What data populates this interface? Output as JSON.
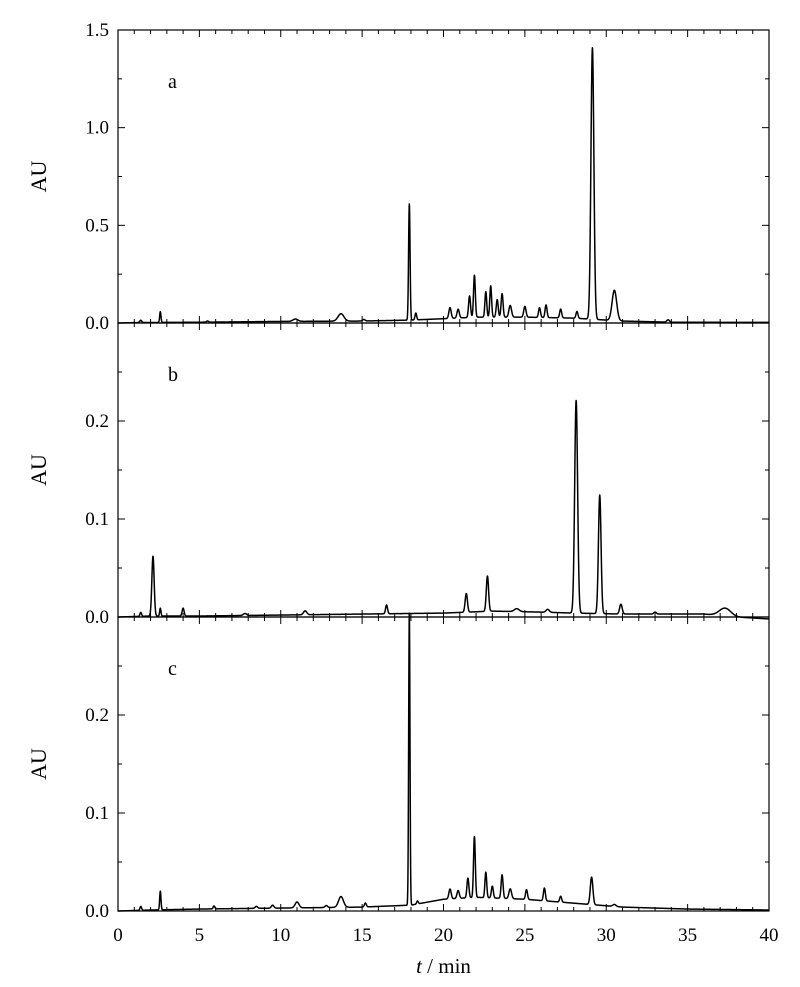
{
  "chart_data": [
    {
      "type": "line",
      "panel_label": "a",
      "ylabel": "AU",
      "ylim": [
        0,
        1.5
      ],
      "yticks": [
        "0.0",
        "0.5",
        "1.0",
        "1.5"
      ],
      "xlim": [
        0,
        40
      ],
      "baseline": [
        [
          0,
          0.0
        ],
        [
          1,
          0.002
        ],
        [
          5,
          0.004
        ],
        [
          10,
          0.008
        ],
        [
          15,
          0.01
        ],
        [
          18,
          0.015
        ],
        [
          20,
          0.022
        ],
        [
          22,
          0.03
        ],
        [
          25,
          0.03
        ],
        [
          28,
          0.025
        ],
        [
          31,
          0.01
        ],
        [
          34,
          0.004
        ],
        [
          40,
          0.003
        ]
      ],
      "peaks": [
        {
          "x": 1.4,
          "y": 0.012,
          "w": 0.06
        },
        {
          "x": 2.6,
          "y": 0.055,
          "w": 0.04
        },
        {
          "x": 5.5,
          "y": 0.006,
          "w": 0.06
        },
        {
          "x": 10.9,
          "y": 0.012,
          "w": 0.15
        },
        {
          "x": 13.7,
          "y": 0.038,
          "w": 0.18
        },
        {
          "x": 15.1,
          "y": 0.008,
          "w": 0.08
        },
        {
          "x": 17.9,
          "y": 0.595,
          "w": 0.045
        },
        {
          "x": 18.3,
          "y": 0.035,
          "w": 0.05
        },
        {
          "x": 20.4,
          "y": 0.055,
          "w": 0.07
        },
        {
          "x": 20.9,
          "y": 0.045,
          "w": 0.07
        },
        {
          "x": 21.6,
          "y": 0.11,
          "w": 0.06
        },
        {
          "x": 21.9,
          "y": 0.215,
          "w": 0.055
        },
        {
          "x": 22.6,
          "y": 0.13,
          "w": 0.055
        },
        {
          "x": 22.9,
          "y": 0.16,
          "w": 0.055
        },
        {
          "x": 23.3,
          "y": 0.09,
          "w": 0.06
        },
        {
          "x": 23.6,
          "y": 0.12,
          "w": 0.06
        },
        {
          "x": 24.1,
          "y": 0.06,
          "w": 0.08
        },
        {
          "x": 25.0,
          "y": 0.055,
          "w": 0.07
        },
        {
          "x": 25.9,
          "y": 0.05,
          "w": 0.06
        },
        {
          "x": 26.3,
          "y": 0.065,
          "w": 0.06
        },
        {
          "x": 27.2,
          "y": 0.045,
          "w": 0.06
        },
        {
          "x": 28.2,
          "y": 0.035,
          "w": 0.06
        },
        {
          "x": 29.15,
          "y": 1.39,
          "w": 0.09
        },
        {
          "x": 30.5,
          "y": 0.155,
          "w": 0.14
        },
        {
          "x": 33.8,
          "y": 0.012,
          "w": 0.08
        }
      ]
    },
    {
      "type": "line",
      "panel_label": "b",
      "ylabel": "AU",
      "ylim": [
        0,
        0.3
      ],
      "yticks": [
        "0.0",
        "0.1",
        "0.2"
      ],
      "xlim": [
        0,
        40
      ],
      "baseline": [
        [
          0,
          0.0
        ],
        [
          2,
          0.001
        ],
        [
          5,
          0.001
        ],
        [
          10,
          0.002
        ],
        [
          15,
          0.003
        ],
        [
          20,
          0.004
        ],
        [
          23,
          0.006
        ],
        [
          26,
          0.005
        ],
        [
          28,
          0.004
        ],
        [
          31,
          0.003
        ],
        [
          36,
          0.003
        ],
        [
          38,
          0.0
        ],
        [
          40,
          -0.002
        ]
      ],
      "peaks": [
        {
          "x": 1.4,
          "y": 0.004,
          "w": 0.05
        },
        {
          "x": 2.15,
          "y": 0.061,
          "w": 0.07
        },
        {
          "x": 2.6,
          "y": 0.008,
          "w": 0.04
        },
        {
          "x": 4.0,
          "y": 0.008,
          "w": 0.06
        },
        {
          "x": 7.8,
          "y": 0.002,
          "w": 0.1
        },
        {
          "x": 11.5,
          "y": 0.004,
          "w": 0.1
        },
        {
          "x": 16.5,
          "y": 0.009,
          "w": 0.06
        },
        {
          "x": 21.4,
          "y": 0.019,
          "w": 0.07
        },
        {
          "x": 22.7,
          "y": 0.036,
          "w": 0.07
        },
        {
          "x": 24.5,
          "y": 0.003,
          "w": 0.15
        },
        {
          "x": 26.4,
          "y": 0.003,
          "w": 0.1
        },
        {
          "x": 28.15,
          "y": 0.217,
          "w": 0.09
        },
        {
          "x": 29.6,
          "y": 0.121,
          "w": 0.08
        },
        {
          "x": 30.9,
          "y": 0.01,
          "w": 0.08
        },
        {
          "x": 33.0,
          "y": 0.002,
          "w": 0.08
        },
        {
          "x": 37.3,
          "y": 0.008,
          "w": 0.35
        }
      ]
    },
    {
      "type": "line",
      "panel_label": "c",
      "ylabel": "AU",
      "ylim": [
        0,
        0.3
      ],
      "yticks": [
        "0.0",
        "0.1",
        "0.2"
      ],
      "xlim": [
        0,
        40
      ],
      "xticks": [
        "0",
        "5",
        "10",
        "15",
        "20",
        "25",
        "30",
        "35",
        "40"
      ],
      "xlabel_var": "t",
      "xlabel_unit": " / min",
      "baseline": [
        [
          0,
          0.0
        ],
        [
          2,
          0.001
        ],
        [
          5,
          0.002
        ],
        [
          10,
          0.003
        ],
        [
          15,
          0.004
        ],
        [
          18,
          0.006
        ],
        [
          20,
          0.012
        ],
        [
          22,
          0.014
        ],
        [
          25,
          0.012
        ],
        [
          28,
          0.008
        ],
        [
          31,
          0.004
        ],
        [
          35,
          0.002
        ],
        [
          40,
          0.001
        ]
      ],
      "peaks": [
        {
          "x": 1.4,
          "y": 0.004,
          "w": 0.05
        },
        {
          "x": 2.6,
          "y": 0.019,
          "w": 0.04
        },
        {
          "x": 5.9,
          "y": 0.003,
          "w": 0.05
        },
        {
          "x": 8.5,
          "y": 0.002,
          "w": 0.08
        },
        {
          "x": 9.5,
          "y": 0.003,
          "w": 0.08
        },
        {
          "x": 11.0,
          "y": 0.006,
          "w": 0.12
        },
        {
          "x": 12.8,
          "y": 0.002,
          "w": 0.08
        },
        {
          "x": 13.7,
          "y": 0.011,
          "w": 0.15
        },
        {
          "x": 15.2,
          "y": 0.004,
          "w": 0.06
        },
        {
          "x": 17.9,
          "y": 0.298,
          "w": 0.04
        },
        {
          "x": 18.4,
          "y": 0.003,
          "w": 0.05
        },
        {
          "x": 20.4,
          "y": 0.01,
          "w": 0.07
        },
        {
          "x": 20.9,
          "y": 0.008,
          "w": 0.07
        },
        {
          "x": 21.5,
          "y": 0.02,
          "w": 0.06
        },
        {
          "x": 21.9,
          "y": 0.062,
          "w": 0.055
        },
        {
          "x": 22.6,
          "y": 0.026,
          "w": 0.055
        },
        {
          "x": 23.0,
          "y": 0.012,
          "w": 0.06
        },
        {
          "x": 23.6,
          "y": 0.024,
          "w": 0.06
        },
        {
          "x": 24.1,
          "y": 0.01,
          "w": 0.08
        },
        {
          "x": 25.1,
          "y": 0.01,
          "w": 0.06
        },
        {
          "x": 26.2,
          "y": 0.013,
          "w": 0.06
        },
        {
          "x": 27.2,
          "y": 0.006,
          "w": 0.06
        },
        {
          "x": 29.1,
          "y": 0.028,
          "w": 0.08
        },
        {
          "x": 30.5,
          "y": 0.002,
          "w": 0.1
        }
      ]
    }
  ]
}
